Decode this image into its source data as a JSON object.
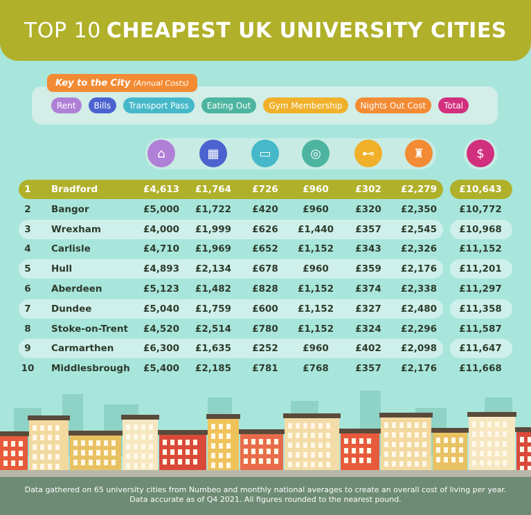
{
  "title": {
    "light": "TOP 10",
    "bold": "CHEAPEST UK UNIVERSITY CITIES"
  },
  "key": {
    "label": "Key to the City",
    "sub": "(Annual Costs)",
    "items": [
      {
        "label": "Rent",
        "color": "#b07fd6"
      },
      {
        "label": "Bills",
        "color": "#4c63cf"
      },
      {
        "label": "Transport Pass",
        "color": "#45b9c9"
      },
      {
        "label": "Eating Out",
        "color": "#4db59f"
      },
      {
        "label": "Gym Membership",
        "color": "#f0b02a"
      },
      {
        "label": "Nights Out Cost",
        "color": "#f38b34"
      },
      {
        "label": "Total",
        "color": "#d22f7f"
      }
    ]
  },
  "icons": [
    "house-icon",
    "bills-icon",
    "bus-icon",
    "plate-cutlery-icon",
    "dumbbell-icon",
    "bottle-glass-icon",
    "cash-icon"
  ],
  "rows": [
    {
      "rank": "1",
      "city": "Bradford",
      "rent": "£4,613",
      "bills": "£1,764",
      "transport": "£726",
      "eating": "£960",
      "gym": "£302",
      "nights": "£2,279",
      "total": "£10,643"
    },
    {
      "rank": "2",
      "city": "Bangor",
      "rent": "£5,000",
      "bills": "£1,722",
      "transport": "£420",
      "eating": "£960",
      "gym": "£320",
      "nights": "£2,350",
      "total": "£10,772"
    },
    {
      "rank": "3",
      "city": "Wrexham",
      "rent": "£4,000",
      "bills": "£1,999",
      "transport": "£626",
      "eating": "£1,440",
      "gym": "£357",
      "nights": "£2,545",
      "total": "£10,968"
    },
    {
      "rank": "4",
      "city": "Carlisle",
      "rent": "£4,710",
      "bills": "£1,969",
      "transport": "£652",
      "eating": "£1,152",
      "gym": "£343",
      "nights": "£2,326",
      "total": "£11,152"
    },
    {
      "rank": "5",
      "city": "Hull",
      "rent": "£4,893",
      "bills": "£2,134",
      "transport": "£678",
      "eating": "£960",
      "gym": "£359",
      "nights": "£2,176",
      "total": "£11,201"
    },
    {
      "rank": "6",
      "city": "Aberdeen",
      "rent": "£5,123",
      "bills": "£1,482",
      "transport": "£828",
      "eating": "£1,152",
      "gym": "£374",
      "nights": "£2,338",
      "total": "£11,297"
    },
    {
      "rank": "7",
      "city": "Dundee",
      "rent": "£5,040",
      "bills": "£1,759",
      "transport": "£600",
      "eating": "£1,152",
      "gym": "£327",
      "nights": "£2,480",
      "total": "£11,358"
    },
    {
      "rank": "8",
      "city": "Stoke-on-Trent",
      "rent": "£4,520",
      "bills": "£2,514",
      "transport": "£780",
      "eating": "£1,152",
      "gym": "£324",
      "nights": "£2,296",
      "total": "£11,587"
    },
    {
      "rank": "9",
      "city": "Carmarthen",
      "rent": "£6,300",
      "bills": "£1,635",
      "transport": "£252",
      "eating": "£960",
      "gym": "£402",
      "nights": "£2,098",
      "total": "£11,647"
    },
    {
      "rank": "10",
      "city": "Middlesbrough",
      "rent": "£5,400",
      "bills": "£2,185",
      "transport": "£781",
      "eating": "£768",
      "gym": "£357",
      "nights": "£2,176",
      "total": "£11,668"
    }
  ],
  "footer": {
    "line1": "Data gathered on 65 university cities from Numbeo and monthly national averages to create an overall cost of living per year.",
    "line2": "Data accurate as of Q4 2021. All figures rounded to the nearest pound."
  }
}
